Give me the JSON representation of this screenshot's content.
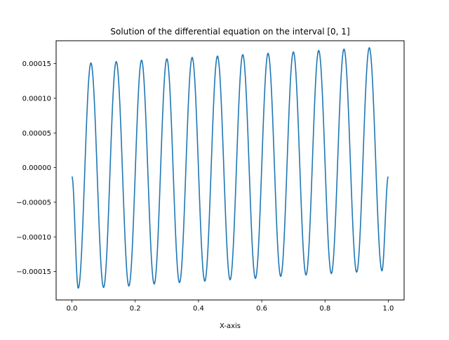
{
  "chart_data": {
    "type": "line",
    "title": "Solution of the differential equation on the interval [0, 1]",
    "xlabel": "X-axis",
    "ylabel": "",
    "xlim": [
      -0.05,
      1.05
    ],
    "ylim": [
      -0.000191,
      0.000183
    ],
    "x_ticks": [
      0.0,
      0.2,
      0.4,
      0.6,
      0.8,
      1.0
    ],
    "x_tick_labels": [
      "0.0",
      "0.2",
      "0.4",
      "0.6",
      "0.8",
      "1.0"
    ],
    "y_ticks": [
      -0.00015,
      -0.0001,
      -5e-05,
      0.0,
      5e-05,
      0.0001,
      0.00015
    ],
    "y_tick_labels": [
      "−0.00015",
      "−0.00010",
      "−0.00005",
      "0.00000",
      "0.00005",
      "0.00010",
      "0.00015"
    ],
    "grid": false,
    "line_color": "#1f77b4",
    "series": [
      {
        "x": [
          0.0,
          0.02,
          0.06,
          0.1,
          0.14,
          0.18,
          0.22,
          0.26,
          0.3,
          0.34,
          0.38,
          0.42,
          0.46,
          0.5,
          0.54,
          0.58,
          0.62,
          0.66,
          0.7,
          0.74,
          0.78,
          0.82,
          0.86,
          0.9,
          0.94,
          0.98,
          1.0
        ],
        "y": [
          -1.3e-05,
          -0.000174,
          0.000151,
          -0.000173,
          0.000153,
          -0.000171,
          0.000155,
          -0.000168,
          0.000157,
          -0.000166,
          0.000159,
          -0.000164,
          0.000161,
          -0.000162,
          0.000163,
          -0.00016,
          0.000165,
          -0.000157,
          0.000167,
          -0.000155,
          0.000169,
          -0.000153,
          0.000171,
          -0.000151,
          0.000173,
          -0.000149,
          -1.3e-05
        ]
      }
    ]
  }
}
